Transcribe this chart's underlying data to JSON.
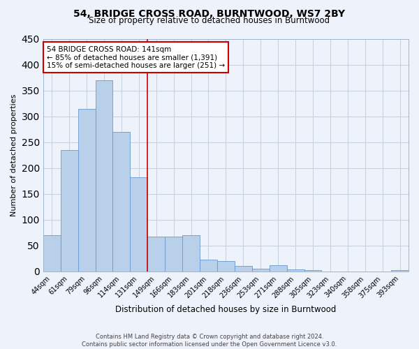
{
  "title": "54, BRIDGE CROSS ROAD, BURNTWOOD, WS7 2BY",
  "subtitle": "Size of property relative to detached houses in Burntwood",
  "xlabel": "Distribution of detached houses by size in Burntwood",
  "ylabel": "Number of detached properties",
  "categories": [
    "44sqm",
    "61sqm",
    "79sqm",
    "96sqm",
    "114sqm",
    "131sqm",
    "149sqm",
    "166sqm",
    "183sqm",
    "201sqm",
    "218sqm",
    "236sqm",
    "253sqm",
    "271sqm",
    "288sqm",
    "305sqm",
    "323sqm",
    "340sqm",
    "358sqm",
    "375sqm",
    "393sqm"
  ],
  "values": [
    70,
    235,
    315,
    370,
    270,
    182,
    68,
    68,
    70,
    23,
    20,
    10,
    5,
    12,
    4,
    2,
    0,
    0,
    0,
    0,
    3
  ],
  "bar_color": "#b8d0ea",
  "bar_edge_color": "#6699cc",
  "background_color": "#eef2fa",
  "grid_color": "#c5d0e0",
  "vline_x_index": 5.5,
  "vline_color": "#cc0000",
  "annotation_title": "54 BRIDGE CROSS ROAD: 141sqm",
  "annotation_line1": "← 85% of detached houses are smaller (1,391)",
  "annotation_line2": "15% of semi-detached houses are larger (251) →",
  "annotation_box_color": "#ffffff",
  "annotation_box_edge": "#cc0000",
  "ylim": [
    0,
    450
  ],
  "yticks": [
    0,
    50,
    100,
    150,
    200,
    250,
    300,
    350,
    400,
    450
  ],
  "footnote1": "Contains HM Land Registry data © Crown copyright and database right 2024.",
  "footnote2": "Contains public sector information licensed under the Open Government Licence v3.0."
}
